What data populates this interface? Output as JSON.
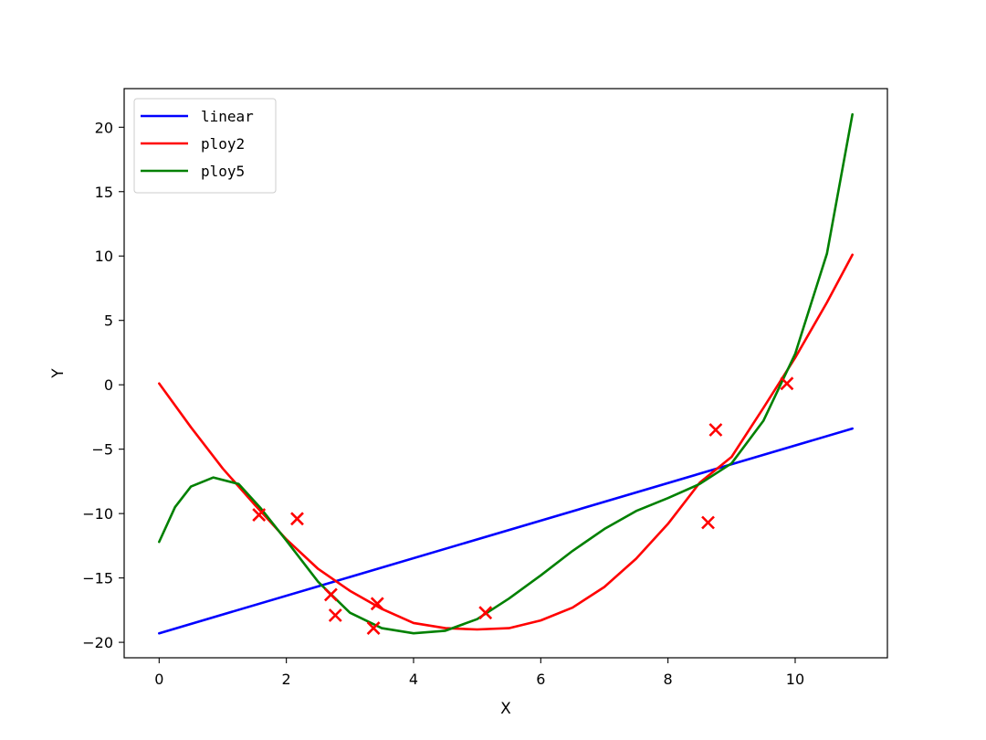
{
  "chart_data": {
    "type": "line",
    "title": "",
    "xlabel": "X",
    "ylabel": "Y",
    "xlim": [
      -0.55,
      11.45
    ],
    "ylim": [
      -21.2,
      23.0
    ],
    "xticks": [
      0,
      2,
      4,
      6,
      8,
      10
    ],
    "yticks": [
      -20,
      -15,
      -10,
      -5,
      0,
      5,
      10,
      15,
      20
    ],
    "xtick_labels": [
      "0",
      "2",
      "4",
      "6",
      "8",
      "10"
    ],
    "ytick_labels": [
      "−20",
      "−15",
      "−10",
      "−5",
      "0",
      "5",
      "10",
      "15",
      "20"
    ],
    "grid": false,
    "legend_position": "top-left",
    "series": [
      {
        "name": "linear",
        "color": "#0000ff",
        "x": [
          0,
          10.9
        ],
        "y": [
          -19.3,
          -3.4
        ]
      },
      {
        "name": "ploy2",
        "color": "#ff0000",
        "x": [
          0,
          0.5,
          1,
          1.5,
          2,
          2.5,
          3,
          3.5,
          4,
          4.5,
          5,
          5.5,
          6,
          6.5,
          7,
          7.5,
          8,
          8.5,
          9,
          9.5,
          10,
          10.5,
          10.9
        ],
        "y": [
          0.1,
          -3.3,
          -6.5,
          -9.3,
          -12.0,
          -14.3,
          -16.0,
          -17.4,
          -18.5,
          -18.9,
          -19.0,
          -18.9,
          -18.3,
          -17.3,
          -15.7,
          -13.5,
          -10.8,
          -7.6,
          -5.6,
          -1.8,
          2.1,
          6.4,
          10.1
        ]
      },
      {
        "name": "ploy5",
        "color": "#008000",
        "x": [
          0,
          0.25,
          0.5,
          0.85,
          1.25,
          1.6,
          2,
          2.5,
          3,
          3.5,
          4,
          4.5,
          5,
          5.5,
          6,
          6.5,
          7,
          7.5,
          8,
          8.5,
          9,
          9.5,
          10,
          10.5,
          10.9
        ],
        "y": [
          -12.2,
          -9.5,
          -7.9,
          -7.2,
          -7.7,
          -9.6,
          -12.1,
          -15.3,
          -17.7,
          -18.9,
          -19.3,
          -19.1,
          -18.2,
          -16.6,
          -14.8,
          -12.9,
          -11.2,
          -9.8,
          -8.8,
          -7.7,
          -6.1,
          -2.8,
          2.4,
          10.2,
          21.0
        ]
      },
      {
        "name": "",
        "kind": "scatter",
        "marker": "x",
        "color": "#ff0000",
        "x": [
          1.57,
          2.17,
          2.7,
          2.77,
          3.37,
          3.43,
          5.13,
          8.63,
          8.75,
          9.87
        ],
        "y": [
          -10.1,
          -10.4,
          -16.3,
          -17.9,
          -18.9,
          -17.0,
          -17.7,
          -10.7,
          -3.5,
          0.1
        ]
      }
    ]
  }
}
